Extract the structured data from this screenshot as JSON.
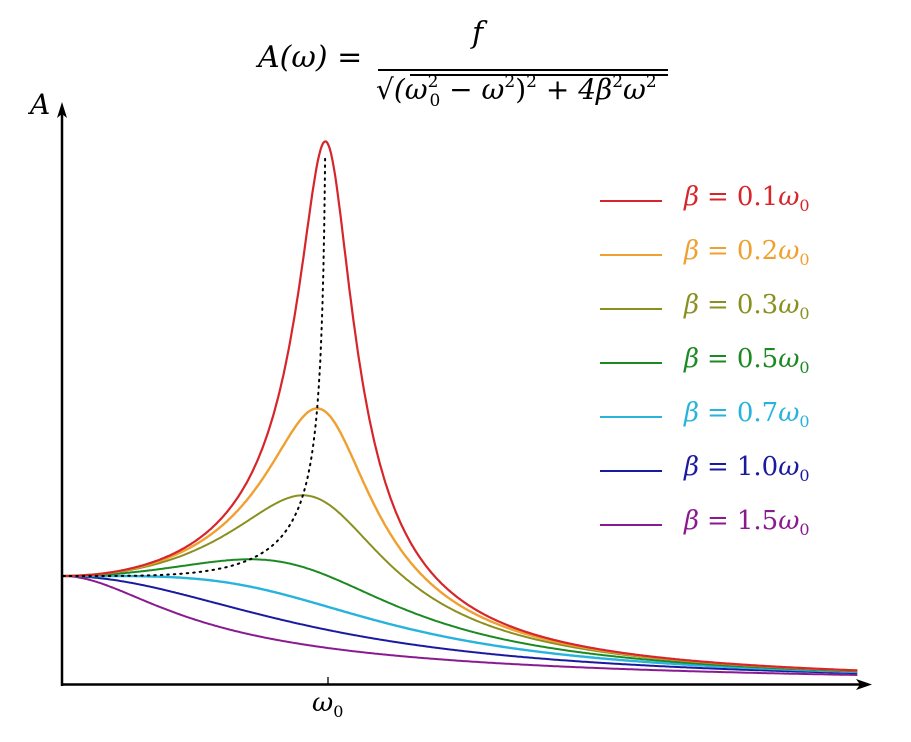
{
  "formula": {
    "lhs": "A(ω) =",
    "numerator": "f",
    "denominator_parts": {
      "sqrt": "√",
      "open": "(ω",
      "w0_sup": "2",
      "w0_sub": "0",
      "minus": " − ω",
      "w_sup": "2",
      "close": ")",
      "close_sup": "2",
      "plus": " + 4β",
      "beta_sup": "2",
      "omega": "ω",
      "omega_sup": "2"
    }
  },
  "axes": {
    "y_label": "A",
    "x_tick_label": "ω",
    "x_tick_sub": "0"
  },
  "colors": {
    "axis": "#000000",
    "resonance_locus": "#000000"
  },
  "chart_data": {
    "type": "line",
    "title": "A(ω) = f / √((ω0² − ω²)² + 4β²ω²)",
    "xlabel": "ω",
    "ylabel": "A",
    "x_ticks": [
      {
        "value": 1.0,
        "label": "ω0"
      }
    ],
    "x_unit": "ω0",
    "y_unit": "f/ω0²",
    "xlim": [
      0,
      3.0
    ],
    "ylim": [
      0,
      5.4
    ],
    "grid": false,
    "legend_position": "upper right",
    "series": [
      {
        "name": "β = 0.1ω0",
        "beta": 0.1,
        "color": "#d6262b",
        "width": 2.2,
        "peak": {
          "x": 0.99,
          "y": 5.03
        }
      },
      {
        "name": "β = 0.2ω0",
        "beta": 0.2,
        "color": "#f0a030",
        "width": 2.4,
        "peak": {
          "x": 0.96,
          "y": 2.55
        }
      },
      {
        "name": "β = 0.3ω0",
        "beta": 0.3,
        "color": "#8a9020",
        "width": 2.0,
        "peak": {
          "x": 0.91,
          "y": 1.75
        }
      },
      {
        "name": "β = 0.5ω0",
        "beta": 0.5,
        "color": "#1b8a22",
        "width": 2.0,
        "peak": {
          "x": 0.71,
          "y": 1.15
        }
      },
      {
        "name": "β = 0.7ω0",
        "beta": 0.7,
        "color": "#27b3dc",
        "width": 2.4,
        "peak": {
          "x": 0.0,
          "y": 1.0
        }
      },
      {
        "name": "β = 1.0ω0",
        "beta": 1.0,
        "color": "#1a1aa0",
        "width": 2.0,
        "peak": {
          "x": 0.0,
          "y": 1.0
        }
      },
      {
        "name": "β = 1.5ω0",
        "beta": 1.5,
        "color": "#8a1a8f",
        "width": 2.0,
        "peak": {
          "x": 0.0,
          "y": 1.0
        }
      }
    ],
    "annotations": [
      {
        "type": "dotted-line",
        "description": "locus of resonance peaks ω_r = √(ω0² − 2β²)"
      }
    ]
  }
}
